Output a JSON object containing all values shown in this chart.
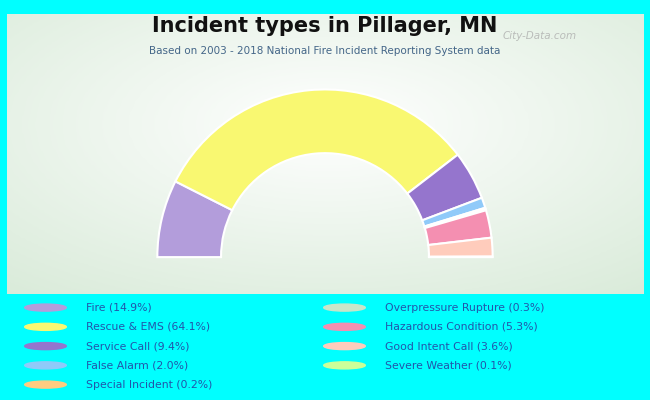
{
  "title": "Incident types in Pillager, MN",
  "subtitle": "Based on 2003 - 2018 National Fire Incident Reporting System data",
  "background_color": "#00FFFF",
  "segments": [
    {
      "label": "Fire (14.9%)",
      "value": 14.9,
      "color": "#b39ddb"
    },
    {
      "label": "Rescue & EMS (64.1%)",
      "value": 64.1,
      "color": "#f9f871"
    },
    {
      "label": "Service Call (9.4%)",
      "value": 9.4,
      "color": "#9575cd"
    },
    {
      "label": "False Alarm (2.0%)",
      "value": 2.0,
      "color": "#90caf9"
    },
    {
      "label": "Special Incident (0.2%)",
      "value": 0.2,
      "color": "#ffcc80"
    },
    {
      "label": "Overpressure Rupture (0.3%)",
      "value": 0.3,
      "color": "#c8e6c9"
    },
    {
      "label": "Hazardous Condition (5.3%)",
      "value": 5.3,
      "color": "#f48fb1"
    },
    {
      "label": "Good Intent Call (3.6%)",
      "value": 3.6,
      "color": "#ffccbc"
    },
    {
      "label": "Severe Weather (0.1%)",
      "value": 0.1,
      "color": "#ccff99"
    }
  ],
  "legend_cols": [
    [
      0,
      1,
      2,
      3,
      4
    ],
    [
      5,
      6,
      7,
      8
    ]
  ],
  "legend_text_color": "#2255aa",
  "title_color": "#111111",
  "subtitle_color": "#446688",
  "watermark": "City-Data.com",
  "outer_r": 1.0,
  "inner_r": 0.62
}
